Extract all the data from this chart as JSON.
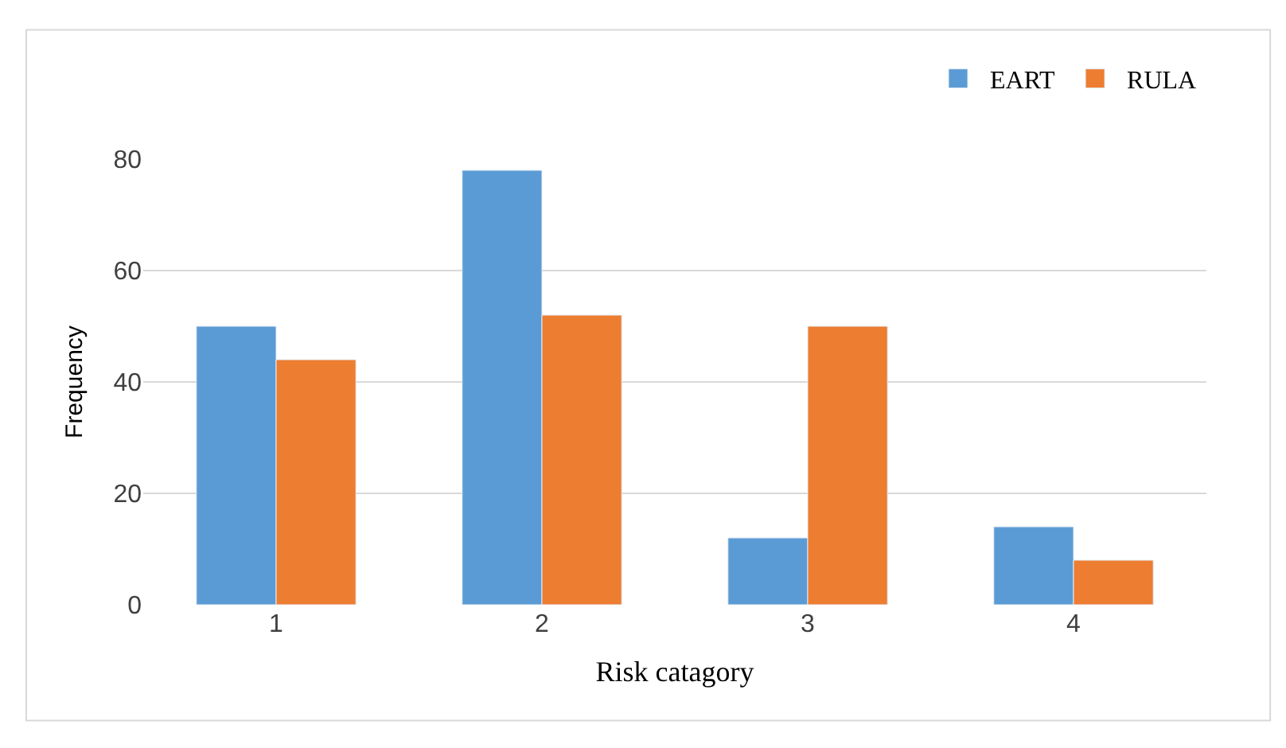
{
  "chart_data": {
    "type": "bar",
    "xlabel": "Risk catagory",
    "ylabel": "Frequency",
    "categories": [
      "1",
      "2",
      "3",
      "4"
    ],
    "series": [
      {
        "name": "EART",
        "color": "#5b9bd5",
        "values": [
          50,
          78,
          12,
          14
        ]
      },
      {
        "name": "RULA",
        "color": "#ed7d31",
        "values": [
          44,
          52,
          50,
          8
        ]
      }
    ],
    "ylim": [
      0,
      80
    ],
    "yticks": [
      0,
      20,
      40,
      60,
      80
    ],
    "grid": "y",
    "legend": "top right"
  }
}
